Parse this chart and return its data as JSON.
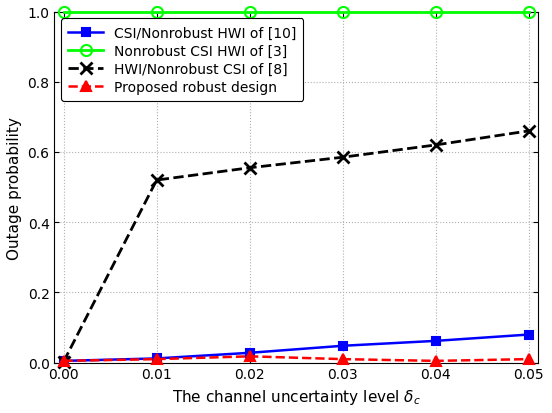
{
  "x": [
    0,
    0.01,
    0.02,
    0.03,
    0.04,
    0.05
  ],
  "series": [
    {
      "key": "csi_nonrobust_hwi",
      "label": "CSI/Nonrobust HWI of [10]",
      "y": [
        0.005,
        0.012,
        0.028,
        0.048,
        0.062,
        0.08
      ],
      "color": "#0000FF",
      "linestyle": "-",
      "marker": "s",
      "linewidth": 1.8,
      "markersize": 6,
      "markerfacecolor": "#0000FF",
      "markeredgecolor": "#0000FF",
      "zorder": 3
    },
    {
      "key": "nonrobust_csi_hwi",
      "label": "Nonrobust CSI HWI of [3]",
      "y": [
        1.0,
        1.0,
        1.0,
        1.0,
        1.0,
        1.0
      ],
      "color": "#00FF00",
      "linestyle": "-",
      "marker": "o",
      "linewidth": 2.0,
      "markersize": 8,
      "markerfacecolor": "none",
      "markeredgecolor": "#00FF00",
      "zorder": 4
    },
    {
      "key": "hwi_nonrobust_csi",
      "label": "HWI/Nonrobust CSI of [8]",
      "y": [
        0.003,
        0.52,
        0.555,
        0.585,
        0.62,
        0.66
      ],
      "color": "#000000",
      "linestyle": "--",
      "marker": "x",
      "linewidth": 2.0,
      "markersize": 8,
      "markerfacecolor": "none",
      "markeredgecolor": "#000000",
      "zorder": 3
    },
    {
      "key": "proposed",
      "label": "Proposed robust design",
      "y": [
        0.005,
        0.01,
        0.018,
        0.01,
        0.005,
        0.01
      ],
      "color": "#FF0000",
      "linestyle": "--",
      "marker": "^",
      "linewidth": 1.8,
      "markersize": 7,
      "markerfacecolor": "#FF0000",
      "markeredgecolor": "#FF0000",
      "zorder": 3
    }
  ],
  "xlabel": "The channel uncertainty level $\\delta_c$",
  "ylabel": "Outage probability",
  "xlim": [
    -0.001,
    0.051
  ],
  "ylim": [
    0,
    1.0
  ],
  "xticks": [
    0,
    0.01,
    0.02,
    0.03,
    0.04,
    0.05
  ],
  "yticks": [
    0,
    0.2,
    0.4,
    0.6,
    0.8,
    1.0
  ],
  "grid": true,
  "legend_loc": "upper left",
  "legend_fontsize": 10,
  "xlabel_fontsize": 11,
  "ylabel_fontsize": 11,
  "tick_fontsize": 10,
  "background_color": "#ffffff",
  "figsize": [
    5.52,
    4.14
  ]
}
